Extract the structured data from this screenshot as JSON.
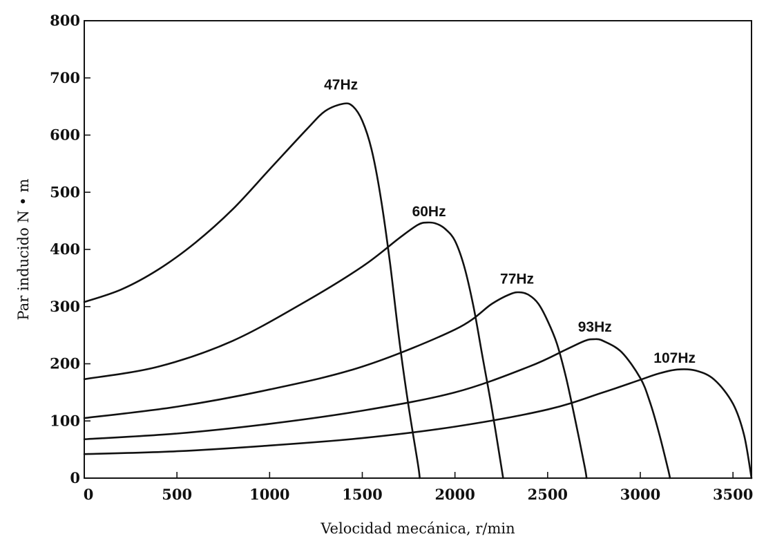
{
  "chart_data": {
    "type": "line",
    "title": "",
    "xlabel": "Velocidad mecánica, r/min",
    "ylabel": "Par inducido N • m",
    "xlim": [
      0,
      3600
    ],
    "ylim": [
      0,
      800
    ],
    "xticks": [
      0,
      500,
      1000,
      1500,
      2000,
      2500,
      3000,
      3500
    ],
    "yticks": [
      0,
      100,
      200,
      300,
      400,
      500,
      600,
      700,
      800
    ],
    "grid": false,
    "legend": "none",
    "series": [
      {
        "name": "47Hz",
        "x": [
          0,
          200,
          400,
          600,
          800,
          1000,
          1200,
          1300,
          1400,
          1450,
          1500,
          1550,
          1600,
          1650,
          1700,
          1750,
          1800,
          1810
        ],
        "y": [
          308,
          330,
          365,
          412,
          470,
          540,
          610,
          642,
          655,
          650,
          625,
          575,
          490,
          375,
          240,
          125,
          25,
          0
        ]
      },
      {
        "name": "60Hz",
        "x": [
          0,
          400,
          800,
          1200,
          1500,
          1700,
          1800,
          1850,
          1900,
          1950,
          2000,
          2050,
          2100,
          2150,
          2200,
          2250,
          2260
        ],
        "y": [
          173,
          195,
          240,
          310,
          370,
          420,
          443,
          447,
          445,
          435,
          415,
          370,
          300,
          210,
          120,
          20,
          0
        ]
      },
      {
        "name": "77Hz",
        "x": [
          0,
          500,
          1000,
          1500,
          2000,
          2200,
          2300,
          2350,
          2400,
          2450,
          2500,
          2550,
          2600,
          2650,
          2700,
          2710
        ],
        "y": [
          105,
          125,
          155,
          195,
          260,
          305,
          322,
          325,
          320,
          305,
          275,
          235,
          175,
          100,
          20,
          0
        ]
      },
      {
        "name": "93Hz",
        "x": [
          0,
          500,
          1000,
          1500,
          2000,
          2400,
          2600,
          2700,
          2750,
          2800,
          2900,
          3000,
          3050,
          3100,
          3150,
          3160
        ],
        "y": [
          68,
          78,
          95,
          118,
          150,
          195,
          225,
          240,
          243,
          240,
          220,
          175,
          135,
          80,
          15,
          0
        ]
      },
      {
        "name": "107Hz",
        "x": [
          0,
          500,
          1000,
          1500,
          2000,
          2500,
          2800,
          3000,
          3100,
          3200,
          3300,
          3400,
          3500,
          3560,
          3600
        ],
        "y": [
          42,
          47,
          57,
          70,
          90,
          120,
          150,
          172,
          183,
          190,
          188,
          172,
          130,
          75,
          0
        ]
      }
    ],
    "annotations": [
      {
        "text": "47Hz",
        "x": 1385,
        "y": 680
      },
      {
        "text": "60Hz",
        "x": 1860,
        "y": 458
      },
      {
        "text": "77Hz",
        "x": 2335,
        "y": 340
      },
      {
        "text": "93Hz",
        "x": 2755,
        "y": 256
      },
      {
        "text": "107Hz",
        "x": 3185,
        "y": 202
      }
    ]
  }
}
